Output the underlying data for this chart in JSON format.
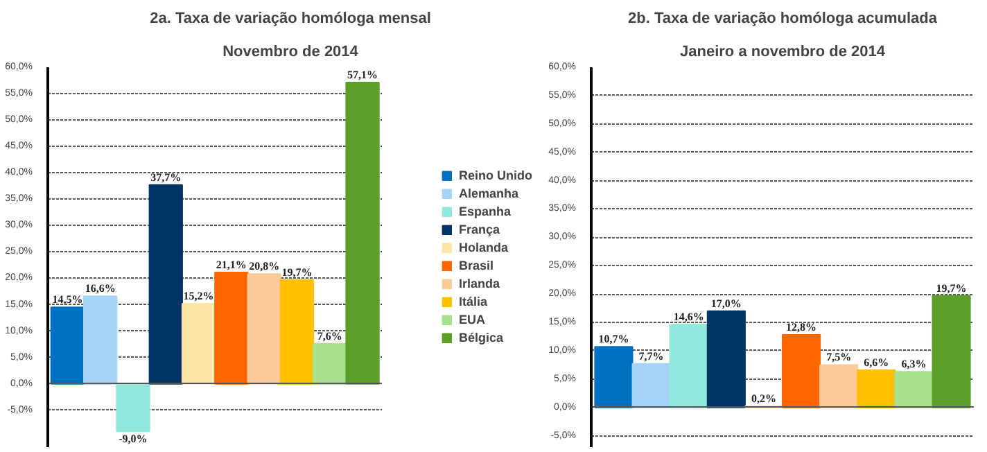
{
  "chart_data": [
    {
      "type": "bar",
      "title": "2a. Taxa de variação homóloga mensal",
      "subtitle": "Novembro de 2014",
      "categories": [
        null
      ],
      "legend": "right",
      "grid": "y",
      "ylim": [
        -12,
        60
      ],
      "yticks": [
        {
          "value": -5,
          "label": "-5,0%"
        },
        {
          "value": 0,
          "label": "0,0%"
        },
        {
          "value": 5,
          "label": "5,0%"
        },
        {
          "value": 10,
          "label": "10,0%"
        },
        {
          "value": 15,
          "label": "15,0%"
        },
        {
          "value": 20,
          "label": "20,0%"
        },
        {
          "value": 25,
          "label": "25,0%"
        },
        {
          "value": 30,
          "label": "30,0%"
        },
        {
          "value": 35,
          "label": "35,0%"
        },
        {
          "value": 40,
          "label": "40,0%"
        },
        {
          "value": 45,
          "label": "45,0%"
        },
        {
          "value": 50,
          "label": "50,0%"
        },
        {
          "value": 55,
          "label": "55,0%"
        },
        {
          "value": 60,
          "label": "60,0%"
        }
      ],
      "series": [
        {
          "name": "Reino Unido",
          "color": "#0070c0",
          "values": [
            14.5
          ],
          "value_labels": [
            "14,5%"
          ]
        },
        {
          "name": "Alemanha",
          "color": "#a6d3f7",
          "values": [
            16.6
          ],
          "value_labels": [
            "16,6%"
          ]
        },
        {
          "name": "Espanha",
          "color": "#92e8dc",
          "values": [
            -9.0
          ],
          "value_labels": [
            "-9,0%"
          ]
        },
        {
          "name": "França",
          "color": "#003366",
          "values": [
            37.7
          ],
          "value_labels": [
            "37,7%"
          ]
        },
        {
          "name": "Holanda",
          "color": "#fde5a5",
          "values": [
            15.2
          ],
          "value_labels": [
            "15,2%"
          ]
        },
        {
          "name": "Brasil",
          "color": "#ff6600",
          "values": [
            21.1
          ],
          "value_labels": [
            "21,1%"
          ]
        },
        {
          "name": "Irlanda",
          "color": "#fbc99a",
          "values": [
            20.8
          ],
          "value_labels": [
            "20,8%"
          ]
        },
        {
          "name": "Itália",
          "color": "#ffc000",
          "values": [
            19.7
          ],
          "value_labels": [
            "19,7%"
          ]
        },
        {
          "name": "EUA",
          "color": "#a9e08a",
          "values": [
            7.6
          ],
          "value_labels": [
            "7,6%"
          ]
        },
        {
          "name": "Bélgica",
          "color": "#5c9e28",
          "values": [
            57.1
          ],
          "value_labels": [
            "57,1%"
          ]
        }
      ]
    },
    {
      "type": "bar",
      "title": "2b. Taxa de variação homóloga acumulada",
      "subtitle": "Janeiro a novembro de 2014",
      "categories": [
        null,
        null,
        null,
        null,
        null,
        null,
        null,
        null,
        null,
        null
      ],
      "grid": "y",
      "ylim": [
        -7,
        60
      ],
      "yticks": [
        {
          "value": -5,
          "label": "-5,0%"
        },
        {
          "value": 0,
          "label": "0,0%"
        },
        {
          "value": 5,
          "label": "5,0%"
        },
        {
          "value": 10,
          "label": "10,0%"
        },
        {
          "value": 15,
          "label": "15,0%"
        },
        {
          "value": 20,
          "label": "20,0%"
        },
        {
          "value": 25,
          "label": "25,0%"
        },
        {
          "value": 30,
          "label": "30,0%"
        },
        {
          "value": 35,
          "label": "35,0%"
        },
        {
          "value": 40,
          "label": "40,0%"
        },
        {
          "value": 45,
          "label": "45,0%"
        },
        {
          "value": 50,
          "label": "50,0%"
        },
        {
          "value": 55,
          "label": "55,0%"
        },
        {
          "value": 60,
          "label": "60,0%"
        }
      ],
      "values": [
        10.7,
        7.7,
        14.6,
        17.0,
        0.2,
        12.8,
        7.5,
        6.6,
        6.3,
        19.7
      ],
      "value_labels": [
        "10,7%",
        "7,7%",
        "14,6%",
        "17,0%",
        "0,2%",
        "12,8%",
        "7,5%",
        "6,6%",
        "6,3%",
        "19,7%"
      ],
      "colors": [
        "#0070c0",
        "#a6d3f7",
        "#92e8dc",
        "#003366",
        "#fde5a5",
        "#ff6600",
        "#fbc99a",
        "#ffc000",
        "#a9e08a",
        "#5c9e28"
      ]
    }
  ]
}
